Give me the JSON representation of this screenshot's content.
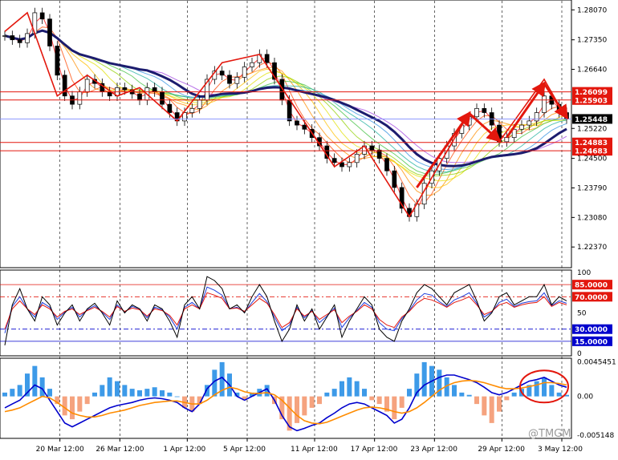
{
  "watermark": "@TMGM",
  "chart_data": [
    {
      "type": "line",
      "panel": "price",
      "yaxis_ticks": [
        "1.28070",
        "1.27350",
        "1.26640",
        "1.25220",
        "1.24500",
        "1.23790",
        "1.23080",
        "1.22370"
      ],
      "ylim": [
        1.2195,
        1.2823
      ],
      "x_dates": [
        "20 Mar 12:00",
        "26 Mar 12:00",
        "1 Apr 12:00",
        "5 Apr 12:00",
        "11 Apr 12:00",
        "17 Apr 12:00",
        "23 Apr 12:00",
        "29 Apr 12:00",
        "3 May 12:00"
      ],
      "current_price": "1.25448",
      "levels": [
        {
          "label": "1.26099",
          "value": 1.26099,
          "color": "#e3170d"
        },
        {
          "label": "1.25903",
          "value": 1.25903,
          "color": "#e3170d"
        },
        {
          "label": "1.24883",
          "value": 1.24883,
          "color": "#e3170d"
        },
        {
          "label": "1.24683",
          "value": 1.24683,
          "color": "#e3170d"
        }
      ],
      "close_series": [
        1.2745,
        1.2735,
        1.2728,
        1.275,
        1.28,
        1.2785,
        1.272,
        1.265,
        1.26,
        1.258,
        1.261,
        1.264,
        1.263,
        1.261,
        1.26,
        1.262,
        1.2615,
        1.2605,
        1.259,
        1.262,
        1.261,
        1.258,
        1.256,
        1.254,
        1.256,
        1.257,
        1.259,
        1.264,
        1.266,
        1.265,
        1.263,
        1.2645,
        1.267,
        1.268,
        1.27,
        1.268,
        1.264,
        1.259,
        1.254,
        1.253,
        1.252,
        1.25,
        1.248,
        1.245,
        1.244,
        1.243,
        1.244,
        1.246,
        1.248,
        1.247,
        1.245,
        1.242,
        1.238,
        1.233,
        1.231,
        1.234,
        1.239,
        1.242,
        1.245,
        1.248,
        1.251,
        1.253,
        1.255,
        1.257,
        1.256,
        1.253,
        1.249,
        1.25,
        1.252,
        1.253,
        1.254,
        1.256,
        1.26,
        1.258,
        1.256,
        1.2545
      ],
      "swing_zigzag": [
        [
          0,
          1.2755
        ],
        [
          3,
          1.28
        ],
        [
          7,
          1.26
        ],
        [
          11,
          1.265
        ],
        [
          15,
          1.26
        ],
        [
          18,
          1.262
        ],
        [
          23,
          1.254
        ],
        [
          29,
          1.268
        ],
        [
          34,
          1.27
        ],
        [
          44,
          1.243
        ],
        [
          48,
          1.248
        ],
        [
          54,
          1.231
        ],
        [
          62,
          1.256
        ],
        [
          66,
          1.249
        ],
        [
          72,
          1.264
        ],
        [
          75,
          1.2545
        ]
      ],
      "arrows": [
        {
          "from": [
            55,
            1.238
          ],
          "to": [
            62,
            1.2558
          ],
          "color": "#e3170d"
        },
        {
          "from": [
            62,
            1.2558
          ],
          "to": [
            66,
            1.2493
          ],
          "color": "#e3170d"
        },
        {
          "from": [
            67,
            1.25
          ],
          "to": [
            72,
            1.263
          ],
          "color": "#e3170d"
        },
        {
          "from": [
            72,
            1.263
          ],
          "to": [
            75,
            1.2549
          ],
          "color": "#e3170d"
        }
      ]
    },
    {
      "type": "line",
      "panel": "oscillator",
      "yaxis_ticks": [
        "100",
        "50",
        "0"
      ],
      "levels": [
        {
          "label": "85.0000",
          "value": 85,
          "color": "#e3170d"
        },
        {
          "label": "70.0000",
          "value": 70,
          "color": "#e3170d"
        },
        {
          "label": "30.0000",
          "value": 30,
          "color": "#0000cd"
        },
        {
          "label": "15.0000",
          "value": 15,
          "color": "#0000cd"
        }
      ],
      "ylim": [
        0,
        100
      ],
      "series": [
        {
          "color": "#000000",
          "values": [
            10,
            60,
            80,
            55,
            40,
            70,
            60,
            35,
            50,
            60,
            40,
            55,
            62,
            50,
            35,
            65,
            50,
            60,
            55,
            40,
            60,
            55,
            40,
            20,
            60,
            70,
            55,
            95,
            90,
            80,
            55,
            60,
            50,
            70,
            85,
            70,
            40,
            15,
            30,
            60,
            40,
            55,
            30,
            45,
            60,
            20,
            40,
            55,
            70,
            60,
            30,
            20,
            15,
            40,
            55,
            75,
            85,
            80,
            70,
            60,
            75,
            80,
            85,
            65,
            40,
            50,
            70,
            75,
            60,
            65,
            70,
            70,
            85,
            60,
            70,
            65
          ]
        },
        {
          "color": "#e3170d",
          "values": [
            30,
            55,
            65,
            55,
            48,
            60,
            55,
            45,
            52,
            55,
            48,
            53,
            57,
            52,
            45,
            58,
            52,
            56,
            54,
            46,
            55,
            53,
            47,
            35,
            55,
            60,
            55,
            75,
            72,
            68,
            55,
            56,
            52,
            60,
            68,
            62,
            48,
            32,
            38,
            55,
            46,
            52,
            42,
            48,
            54,
            38,
            46,
            52,
            60,
            55,
            42,
            35,
            32,
            45,
            52,
            62,
            68,
            66,
            62,
            57,
            63,
            66,
            70,
            60,
            48,
            52,
            60,
            63,
            57,
            60,
            62,
            63,
            70,
            58,
            63,
            60
          ]
        },
        {
          "color": "#1f3fdc",
          "values": [
            25,
            58,
            70,
            55,
            45,
            63,
            57,
            42,
            51,
            57,
            45,
            54,
            59,
            51,
            42,
            60,
            51,
            58,
            55,
            44,
            57,
            54,
            45,
            30,
            57,
            63,
            55,
            82,
            78,
            72,
            55,
            57,
            51,
            63,
            74,
            64,
            45,
            28,
            35,
            57,
            44,
            53,
            38,
            46,
            56,
            32,
            44,
            53,
            63,
            57,
            38,
            30,
            28,
            43,
            53,
            66,
            74,
            72,
            64,
            58,
            66,
            70,
            75,
            62,
            45,
            51,
            63,
            67,
            58,
            62,
            64,
            65,
            75,
            59,
            65,
            62
          ]
        }
      ]
    },
    {
      "type": "bar",
      "panel": "macd",
      "yaxis_ticks": [
        "0.0045451",
        "0.00",
        "-0.005148"
      ],
      "ylim": [
        -0.0052,
        0.0047
      ],
      "histogram": [
        0.0005,
        0.001,
        0.0015,
        0.003,
        0.004,
        0.0025,
        0.001,
        -0.001,
        -0.0025,
        -0.003,
        -0.002,
        -0.001,
        0.0005,
        0.0015,
        0.0025,
        0.002,
        0.0015,
        0.001,
        0.0008,
        0.001,
        0.0012,
        0.0008,
        0.0005,
        0.0,
        -0.0015,
        -0.002,
        -0.001,
        0.0015,
        0.0035,
        0.0045,
        0.003,
        0.0005,
        -0.0005,
        0.0005,
        0.001,
        0.0015,
        -0.001,
        -0.003,
        -0.0045,
        -0.0035,
        -0.0025,
        -0.0015,
        -0.001,
        0.0005,
        0.001,
        0.002,
        0.0025,
        0.002,
        0.001,
        -0.0005,
        -0.001,
        -0.002,
        -0.003,
        -0.0015,
        0.001,
        0.003,
        0.0045,
        0.004,
        0.0035,
        0.0025,
        0.0015,
        0.0005,
        0.0002,
        -0.001,
        -0.0025,
        -0.0035,
        -0.002,
        -0.0005,
        0.0005,
        0.001,
        0.0015,
        0.002,
        0.0025,
        0.0015,
        0.0005,
        0.0002
      ],
      "series": [
        {
          "color": "#0000cd",
          "values": [
            -0.0015,
            -0.001,
            -0.0005,
            0.0005,
            0.0015,
            0.001,
            -0.0005,
            -0.002,
            -0.0035,
            -0.004,
            -0.0035,
            -0.003,
            -0.0025,
            -0.002,
            -0.0015,
            -0.0012,
            -0.001,
            -0.0008,
            -0.0005,
            -0.0003,
            -0.0002,
            -0.0003,
            -0.0005,
            -0.0008,
            -0.0015,
            -0.002,
            -0.001,
            0.001,
            0.002,
            0.0025,
            0.0015,
            0.0,
            -0.0005,
            0.0,
            0.0005,
            0.001,
            -0.0005,
            -0.0025,
            -0.004,
            -0.0045,
            -0.0042,
            -0.0038,
            -0.0035,
            -0.0028,
            -0.0022,
            -0.0015,
            -0.001,
            -0.0008,
            -0.001,
            -0.0015,
            -0.002,
            -0.0025,
            -0.0035,
            -0.003,
            -0.0015,
            0.0005,
            0.0015,
            0.002,
            0.0025,
            0.0028,
            0.0028,
            0.0025,
            0.0022,
            0.0018,
            0.0012,
            0.0005,
            0.0002,
            0.0005,
            0.001,
            0.0015,
            0.002,
            0.0022,
            0.0025,
            0.002,
            0.0015,
            0.0012
          ]
        },
        {
          "color": "#ff8c00",
          "values": [
            -0.002,
            -0.0018,
            -0.0015,
            -0.001,
            -0.0005,
            0.0,
            -0.0002,
            -0.0008,
            -0.0015,
            -0.0022,
            -0.0025,
            -0.0027,
            -0.0027,
            -0.0025,
            -0.0022,
            -0.002,
            -0.0018,
            -0.0015,
            -0.0012,
            -0.001,
            -0.0008,
            -0.0007,
            -0.0006,
            -0.0006,
            -0.0008,
            -0.001,
            -0.001,
            -0.0005,
            0.0002,
            0.0008,
            0.0012,
            0.001,
            0.0006,
            0.0004,
            0.0004,
            0.0005,
            0.0002,
            -0.0005,
            -0.0015,
            -0.0025,
            -0.0032,
            -0.0035,
            -0.0036,
            -0.0034,
            -0.003,
            -0.0026,
            -0.0022,
            -0.0018,
            -0.0015,
            -0.0014,
            -0.0015,
            -0.0017,
            -0.002,
            -0.0022,
            -0.002,
            -0.0015,
            -0.0008,
            0.0,
            0.0008,
            0.0014,
            0.0018,
            0.002,
            0.0021,
            0.002,
            0.0018,
            0.0015,
            0.0012,
            0.001,
            0.001,
            0.0011,
            0.0013,
            0.0015,
            0.0018,
            0.0018,
            0.0017,
            0.0015
          ]
        }
      ]
    }
  ]
}
